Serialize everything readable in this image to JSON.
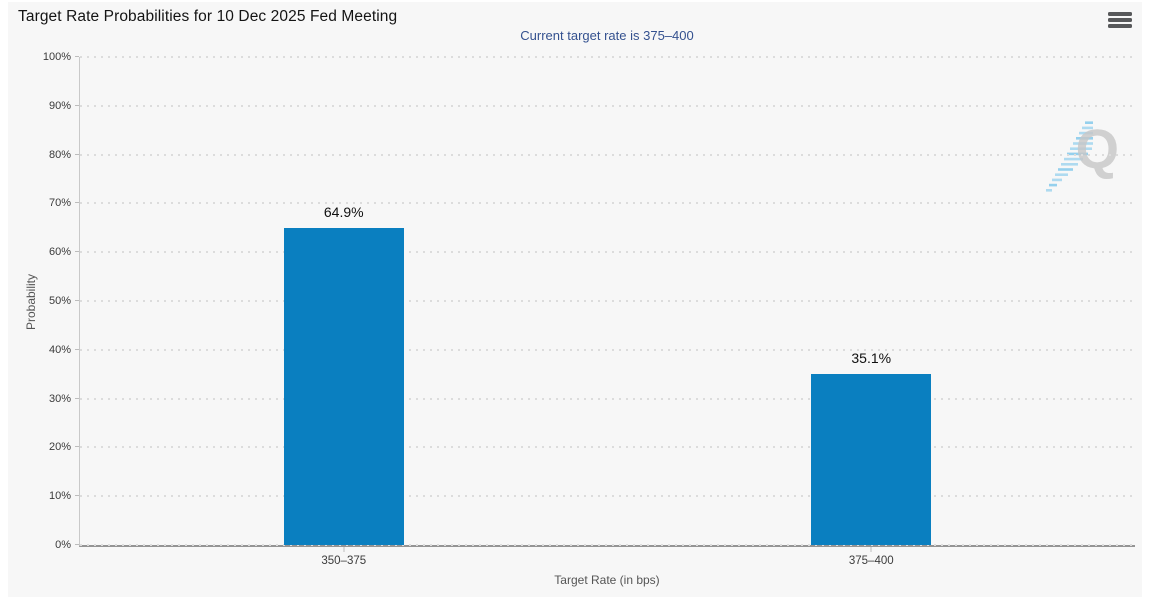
{
  "header": {
    "title": "Target Rate Probabilities for 10 Dec 2025 Fed Meeting",
    "subtitle": "Current target rate is 375–400"
  },
  "watermark": {
    "letter": "Q"
  },
  "chart_data": {
    "type": "bar",
    "title": "Target Rate Probabilities for 10 Dec 2025 Fed Meeting",
    "subtitle": "Current target rate is 375–400",
    "categories": [
      "350–375",
      "375–400"
    ],
    "values": [
      64.9,
      35.1
    ],
    "value_labels": [
      "64.9%",
      "35.1%"
    ],
    "xlabel": "Target Rate (in bps)",
    "ylabel": "Probability",
    "ylim": [
      0,
      100
    ],
    "ytick_step": 10,
    "ytick_labels": [
      "0%",
      "10%",
      "20%",
      "30%",
      "40%",
      "50%",
      "60%",
      "70%",
      "80%",
      "90%",
      "100%"
    ],
    "grid": "horizontal-dotted",
    "legend": "none",
    "bar_color": "#0a7fc0",
    "background_color": "#f7f7f7",
    "subtitle_color": "#34518f"
  }
}
